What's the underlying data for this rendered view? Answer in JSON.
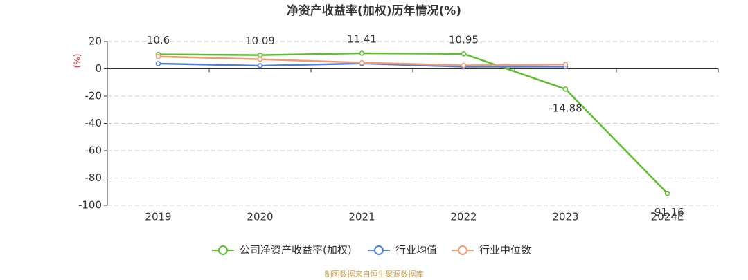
{
  "chart_data": {
    "type": "line",
    "title": "净资产收益率(加权)历年情况(%)",
    "y_label": "(%)",
    "categories": [
      "2019",
      "2020",
      "2021",
      "2022",
      "2023",
      "2024E"
    ],
    "series": [
      {
        "name": "公司净资产收益率(加权)",
        "color": "#5cc02a",
        "values": [
          10.6,
          10.09,
          11.41,
          10.95,
          -14.88,
          -91.16
        ],
        "show_labels": true
      },
      {
        "name": "行业均值",
        "color": "#4e7fe0",
        "values": [
          3.8,
          2.3,
          3.9,
          1.5,
          1.6,
          null
        ],
        "show_labels": false
      },
      {
        "name": "行业中位数",
        "color": "#f29a72",
        "values": [
          9.0,
          7.0,
          4.5,
          2.5,
          3.2,
          null
        ],
        "show_labels": false
      }
    ],
    "ylim": [
      -100,
      20
    ],
    "yticks": [
      -100,
      -80,
      -60,
      -40,
      -20,
      0,
      20
    ],
    "grid": true,
    "source": "制图数据来自恒生聚源数据库"
  }
}
